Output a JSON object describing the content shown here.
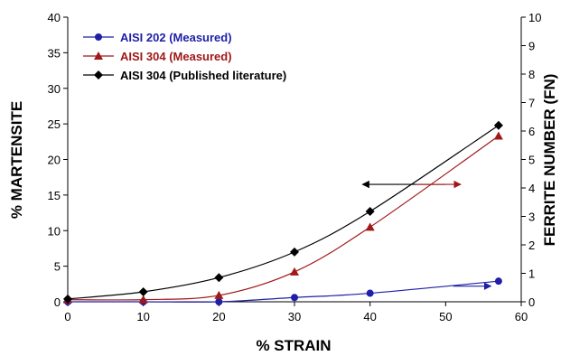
{
  "chart_data": {
    "type": "line",
    "xlabel": "% STRAIN",
    "ylabel": "% MARTENSITE",
    "y2label": "FERRITE NUMBER (FN)",
    "xlim": [
      0,
      60
    ],
    "ylim": [
      0,
      40
    ],
    "y2lim": [
      0,
      10
    ],
    "x_ticks": [
      "0",
      "10",
      "20",
      "30",
      "40",
      "50",
      "60"
    ],
    "y_ticks": [
      "0",
      "5",
      "10",
      "15",
      "20",
      "25",
      "30",
      "35",
      "40"
    ],
    "y2_ticks": [
      "0",
      "1",
      "2",
      "3",
      "4",
      "5",
      "6",
      "7",
      "8",
      "9",
      "10"
    ],
    "legend_position": "top-left",
    "grid": false,
    "series": [
      {
        "name": "AISI 202 (Measured)",
        "marker": "circle",
        "color": "#1f1fa8",
        "x": [
          0,
          10,
          20,
          30,
          40,
          57
        ],
        "y": [
          0,
          0,
          0,
          0.6,
          1.2,
          2.9
        ]
      },
      {
        "name": "AISI 304 (Measured)",
        "marker": "triangle",
        "color": "#a01818",
        "x": [
          0,
          10,
          20,
          30,
          40,
          57
        ],
        "y": [
          0.3,
          0.3,
          0.9,
          4.2,
          10.5,
          23.3
        ]
      },
      {
        "name": "AISI 304 (Published literature)",
        "marker": "diamond",
        "color": "#000000",
        "x": [
          0,
          10,
          20,
          30,
          40,
          57
        ],
        "y": [
          0.4,
          1.4,
          3.4,
          7.0,
          12.7,
          24.8
        ]
      }
    ],
    "annotations": [
      {
        "type": "arrow",
        "color": "#000000",
        "from": [
          50,
          16.5
        ],
        "to": [
          39,
          16.5
        ]
      },
      {
        "type": "arrow",
        "color": "#a01818",
        "from": [
          46,
          16.5
        ],
        "to": [
          52,
          16.5
        ]
      },
      {
        "type": "arrow",
        "color": "#1f1fa8",
        "from": [
          51,
          2.2
        ],
        "to": [
          56,
          2.2
        ]
      }
    ]
  }
}
